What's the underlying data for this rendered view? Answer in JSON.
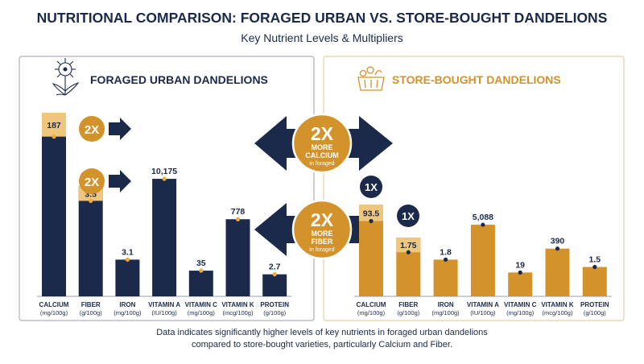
{
  "header": {
    "title": "NUTRITIONAL COMPARISON: FORAGED URBAN VS. STORE-BOUGHT DANDELIONS",
    "subtitle": "Key Nutrient Levels & Multipliers"
  },
  "footer": {
    "line1": "Data indicates significantly higher levels of key nutrients in foraged urban dandelions",
    "line2": "compared to store-bought varieties, particularly Calcium and Fiber."
  },
  "colors": {
    "navy": "#1b2a4a",
    "gold": "#d4922a",
    "light_gold": "#efc67e",
    "accent": "#f1a83a"
  },
  "icons": {
    "left_panel": "dandelion-icon",
    "right_panel": "basket-icon"
  },
  "callouts": {
    "calcium": {
      "multiplier": "2X",
      "line1": "MORE",
      "line2": "CALCIUM",
      "line3": "in foraged"
    },
    "fiber": {
      "multiplier": "2X",
      "line1": "MORE",
      "line2": "FIBER",
      "line3": "in foraged"
    }
  },
  "chart_data": [
    {
      "type": "bar",
      "title": "FORAGED URBAN DANDELIONS",
      "categories": [
        "CALCIUM",
        "FIBER",
        "IRON",
        "VITAMIN A",
        "VITAMIN C",
        "VITAMIN K",
        "PROTEIN"
      ],
      "units": [
        "(mg/100g)",
        "(g/100g)",
        "(mg/100g)",
        "(IU/100g)",
        "(mg/100g)",
        "(mcg/100g)",
        "(g/100g)"
      ],
      "values": [
        187,
        3.5,
        3.1,
        10175,
        35,
        778,
        2.7
      ],
      "value_labels": [
        "187",
        "3.5",
        "3.1",
        "10,175",
        "35",
        "778",
        "2.7"
      ],
      "bar_fraction": [
        1.0,
        0.6,
        0.2,
        0.64,
        0.14,
        0.42,
        0.12
      ],
      "highlight_fraction": [
        0.13,
        0.08,
        0,
        0,
        0,
        0,
        0
      ],
      "multipliers": [
        {
          "category": "CALCIUM",
          "label": "2X"
        },
        {
          "category": "FIBER",
          "label": "2X"
        }
      ]
    },
    {
      "type": "bar",
      "title": "STORE-BOUGHT DANDELIONS",
      "categories": [
        "CALCIUM",
        "FIBER",
        "IRON",
        "VITAMIN A",
        "VITAMIN C",
        "VITAMIN K",
        "PROTEIN"
      ],
      "units": [
        "(mg/100g)",
        "(g/100g)",
        "(mg/100g)",
        "(IU/100g)",
        "(mg/100g)",
        "(mcg/100g)",
        "(g/100g)"
      ],
      "values": [
        93.5,
        1.75,
        1.8,
        5088,
        19,
        390,
        1.5
      ],
      "value_labels": [
        "93.5",
        "1.75",
        "1.8",
        "5,088",
        "19",
        "390",
        "1.5"
      ],
      "bar_fraction": [
        0.5,
        0.32,
        0.2,
        0.39,
        0.13,
        0.26,
        0.16
      ],
      "highlight_fraction": [
        0.09,
        0.08,
        0,
        0,
        0,
        0,
        0
      ],
      "multipliers": [
        {
          "category": "CALCIUM",
          "label": "1X"
        },
        {
          "category": "FIBER",
          "label": "1X"
        }
      ]
    }
  ]
}
